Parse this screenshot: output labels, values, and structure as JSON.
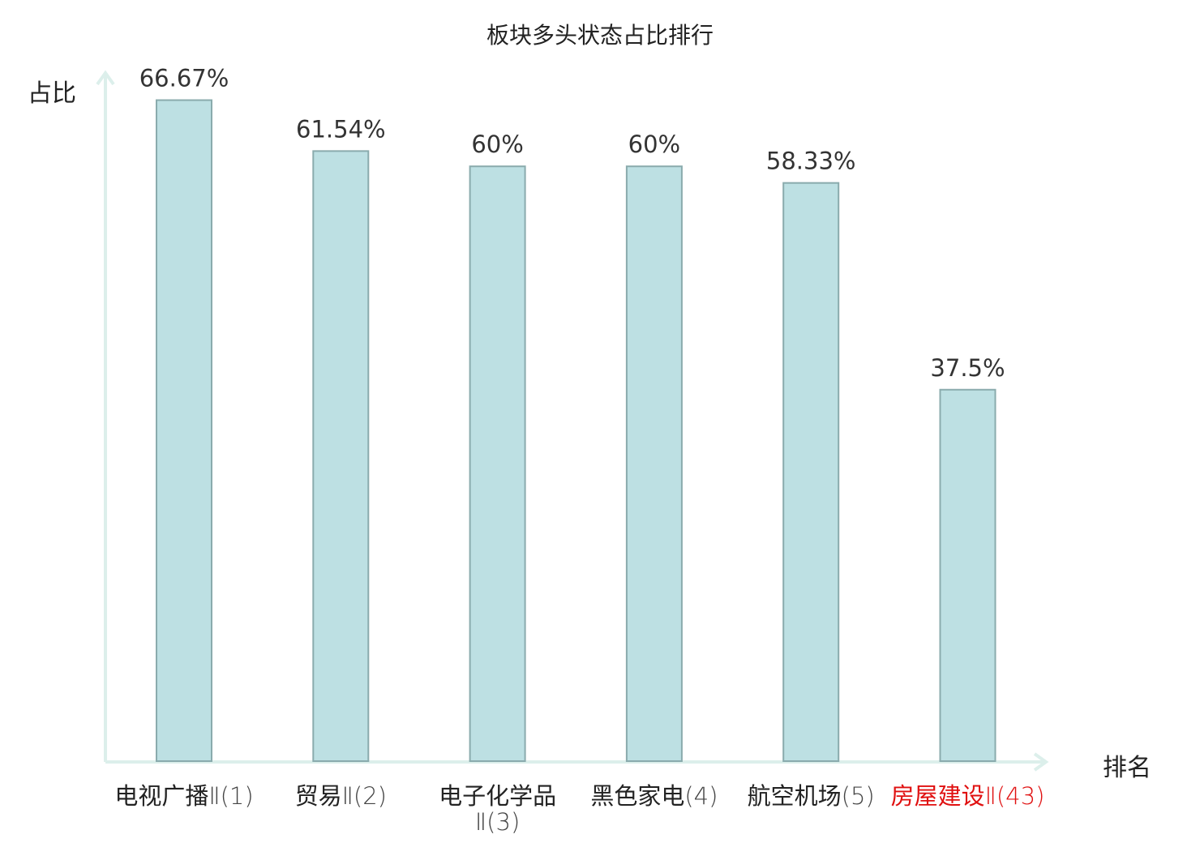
{
  "chart_data": {
    "type": "bar",
    "title": "板块多头状态占比排行",
    "ylabel": "占比",
    "xlabel": "排名",
    "categories": [
      {
        "name": "电视广播",
        "suffix": "Ⅱ(1)"
      },
      {
        "name": "贸易",
        "suffix": "Ⅱ(2)"
      },
      {
        "name": "电子化学品",
        "suffix": "Ⅱ(3)"
      },
      {
        "name": "黑色家电",
        "suffix": "(4)"
      },
      {
        "name": "航空机场",
        "suffix": "(5)"
      },
      {
        "name": "房屋建设",
        "suffix": "Ⅱ(43)"
      }
    ],
    "values": [
      66.67,
      61.54,
      60,
      60,
      58.33,
      37.5
    ],
    "value_labels": [
      "66.67%",
      "61.54%",
      "60%",
      "60%",
      "58.33%",
      "37.5%"
    ],
    "highlight_index": 5,
    "ylim": [
      0,
      69
    ],
    "grid": false,
    "colors": {
      "bar_fill": "#bde0e3",
      "bar_stroke": "#8aabad",
      "axis": "#dcefeb",
      "highlight_text": "#e01010",
      "text": "#222222"
    }
  }
}
